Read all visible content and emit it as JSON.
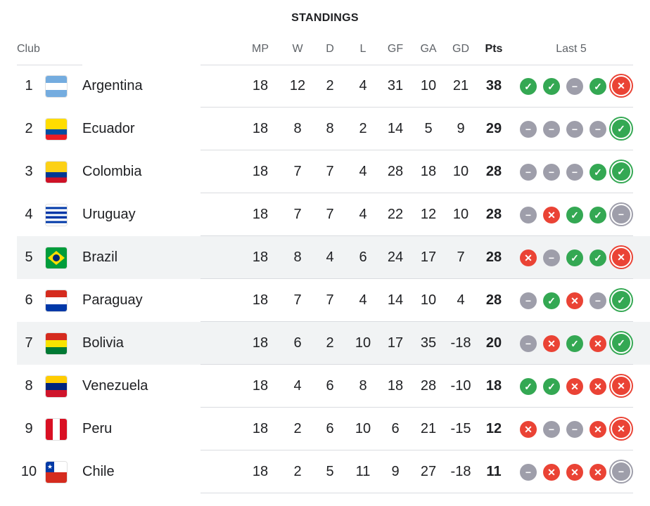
{
  "title": "STANDINGS",
  "headers": {
    "club": "Club",
    "mp": "MP",
    "w": "W",
    "d": "D",
    "l": "L",
    "gf": "GF",
    "ga": "GA",
    "gd": "GD",
    "pts": "Pts",
    "last5": "Last 5"
  },
  "colors": {
    "win": "#34a853",
    "loss": "#ea4335",
    "draw": "#9e9eaa",
    "highlight": "#f1f3f4"
  },
  "icons": {
    "W": "check-icon",
    "L": "x-icon",
    "D": "minus-icon"
  },
  "rows": [
    {
      "rank": "1",
      "club": "Argentina",
      "flag": "argentina",
      "mp": "18",
      "w": "12",
      "d": "2",
      "l": "4",
      "gf": "31",
      "ga": "10",
      "gd": "21",
      "pts": "38",
      "last5": [
        "W",
        "W",
        "D",
        "W",
        "L"
      ],
      "highlight": false
    },
    {
      "rank": "2",
      "club": "Ecuador",
      "flag": "ecuador",
      "mp": "18",
      "w": "8",
      "d": "8",
      "l": "2",
      "gf": "14",
      "ga": "5",
      "gd": "9",
      "pts": "29",
      "last5": [
        "D",
        "D",
        "D",
        "D",
        "W"
      ],
      "highlight": false
    },
    {
      "rank": "3",
      "club": "Colombia",
      "flag": "colombia",
      "mp": "18",
      "w": "7",
      "d": "7",
      "l": "4",
      "gf": "28",
      "ga": "18",
      "gd": "10",
      "pts": "28",
      "last5": [
        "D",
        "D",
        "D",
        "W",
        "W"
      ],
      "highlight": false
    },
    {
      "rank": "4",
      "club": "Uruguay",
      "flag": "uruguay",
      "mp": "18",
      "w": "7",
      "d": "7",
      "l": "4",
      "gf": "22",
      "ga": "12",
      "gd": "10",
      "pts": "28",
      "last5": [
        "D",
        "L",
        "W",
        "W",
        "D"
      ],
      "highlight": false
    },
    {
      "rank": "5",
      "club": "Brazil",
      "flag": "brazil",
      "mp": "18",
      "w": "8",
      "d": "4",
      "l": "6",
      "gf": "24",
      "ga": "17",
      "gd": "7",
      "pts": "28",
      "last5": [
        "L",
        "D",
        "W",
        "W",
        "L"
      ],
      "highlight": true
    },
    {
      "rank": "6",
      "club": "Paraguay",
      "flag": "paraguay",
      "mp": "18",
      "w": "7",
      "d": "7",
      "l": "4",
      "gf": "14",
      "ga": "10",
      "gd": "4",
      "pts": "28",
      "last5": [
        "D",
        "W",
        "L",
        "D",
        "W"
      ],
      "highlight": false
    },
    {
      "rank": "7",
      "club": "Bolivia",
      "flag": "bolivia",
      "mp": "18",
      "w": "6",
      "d": "2",
      "l": "10",
      "gf": "17",
      "ga": "35",
      "gd": "-18",
      "pts": "20",
      "last5": [
        "D",
        "L",
        "W",
        "L",
        "W"
      ],
      "highlight": true
    },
    {
      "rank": "8",
      "club": "Venezuela",
      "flag": "venezuela",
      "mp": "18",
      "w": "4",
      "d": "6",
      "l": "8",
      "gf": "18",
      "ga": "28",
      "gd": "-10",
      "pts": "18",
      "last5": [
        "W",
        "W",
        "L",
        "L",
        "L"
      ],
      "highlight": false
    },
    {
      "rank": "9",
      "club": "Peru",
      "flag": "peru",
      "mp": "18",
      "w": "2",
      "d": "6",
      "l": "10",
      "gf": "6",
      "ga": "21",
      "gd": "-15",
      "pts": "12",
      "last5": [
        "L",
        "D",
        "D",
        "L",
        "L"
      ],
      "highlight": false
    },
    {
      "rank": "10",
      "club": "Chile",
      "flag": "chile",
      "mp": "18",
      "w": "2",
      "d": "5",
      "l": "11",
      "gf": "9",
      "ga": "27",
      "gd": "-18",
      "pts": "11",
      "last5": [
        "D",
        "L",
        "L",
        "L",
        "D"
      ],
      "highlight": false
    }
  ]
}
